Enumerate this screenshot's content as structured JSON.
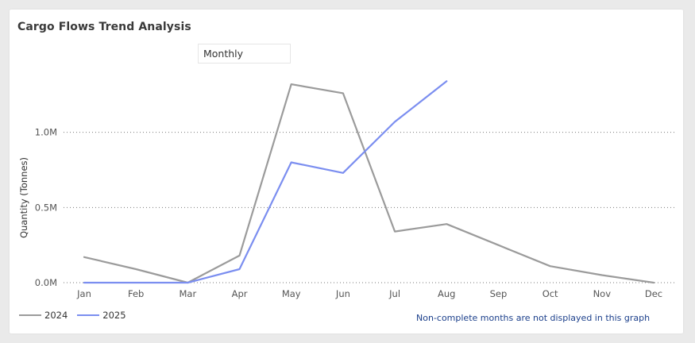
{
  "title": "Cargo Flows Trend Analysis",
  "slicer": {
    "value": "Monthly"
  },
  "note": "Non-complete months are not displayed in this graph",
  "colors": {
    "2024": "#9b9b9b",
    "2025": "#7b8ef0",
    "grid": "#7a7a7a",
    "tick": "#555555"
  },
  "chart_data": {
    "type": "line",
    "title": "Cargo Flows Trend Analysis",
    "xlabel": "",
    "ylabel": "Quantity (Tonnes)",
    "ylim": [
      0,
      1.5
    ],
    "y_unit": "M",
    "yticks": [
      0,
      0.5,
      1.0
    ],
    "ytick_labels": [
      "0.0M",
      "0.5M",
      "1.0M"
    ],
    "grid": "horizontal dotted",
    "legend": "bottom-left",
    "categories": [
      "Jan",
      "Feb",
      "Mar",
      "Apr",
      "May",
      "Jun",
      "Jul",
      "Aug",
      "Sep",
      "Oct",
      "Nov",
      "Dec"
    ],
    "series": [
      {
        "name": "2024",
        "values": [
          0.17,
          0.09,
          0.0,
          0.18,
          1.32,
          1.26,
          0.34,
          0.39,
          0.25,
          0.11,
          0.05,
          0.0
        ]
      },
      {
        "name": "2025",
        "values": [
          0.0,
          0.0,
          0.0,
          0.09,
          0.8,
          0.73,
          1.07,
          1.34,
          null,
          null,
          null,
          null
        ]
      }
    ]
  }
}
